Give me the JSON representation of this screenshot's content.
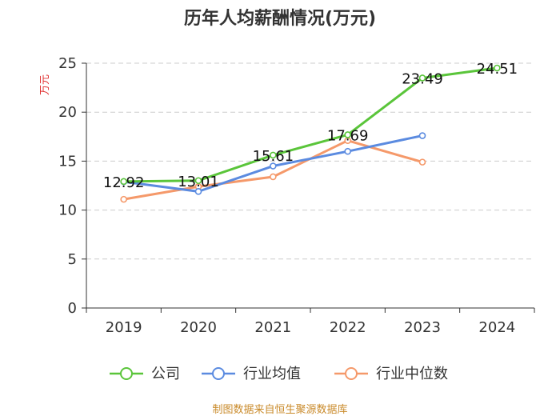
{
  "chart_data": {
    "type": "line",
    "title": "历年人均薪酬情况(万元)",
    "ylabel": "万元",
    "xlabel": "",
    "categories": [
      "2019",
      "2020",
      "2021",
      "2022",
      "2023",
      "2024"
    ],
    "ylim": [
      0,
      25
    ],
    "yticks": [
      0,
      5,
      10,
      15,
      20,
      25
    ],
    "grid": true,
    "legend_position": "bottom",
    "series": [
      {
        "name": "公司",
        "color": "#5ac53a",
        "values": [
          12.92,
          13.01,
          15.61,
          17.69,
          23.49,
          24.51
        ],
        "labels": [
          "12.92",
          "13.01",
          "15.61",
          "17.69",
          "23.49",
          "24.51"
        ]
      },
      {
        "name": "行业均值",
        "color": "#5b8be0",
        "values": [
          12.9,
          11.9,
          14.5,
          16.0,
          17.6,
          null
        ]
      },
      {
        "name": "行业中位数",
        "color": "#f5996a",
        "values": [
          11.1,
          12.4,
          13.4,
          17.1,
          14.9,
          null
        ]
      }
    ]
  },
  "source": "制图数据来自恒生聚源数据库"
}
